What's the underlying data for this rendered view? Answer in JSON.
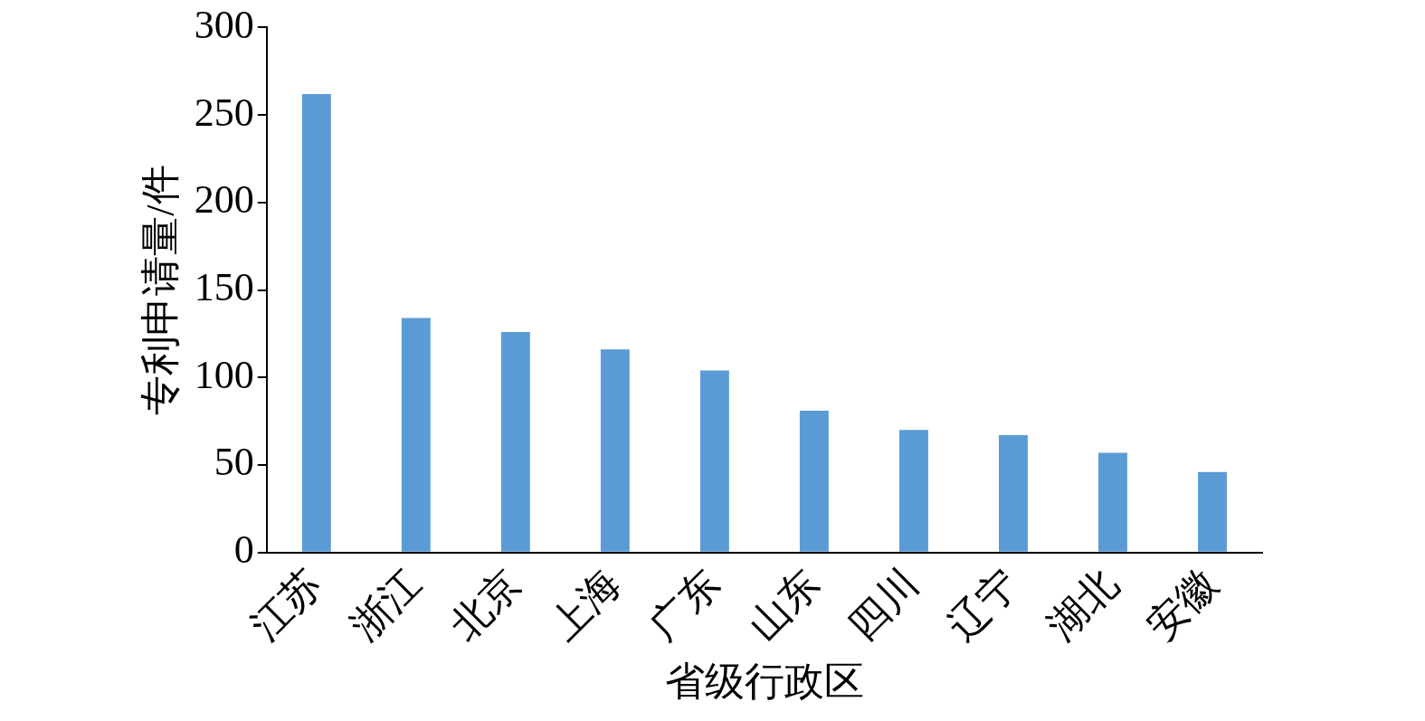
{
  "chart_data": {
    "type": "bar",
    "categories": [
      "江苏",
      "浙江",
      "北京",
      "上海",
      "广东",
      "山东",
      "四川",
      "辽宁",
      "湖北",
      "安徽"
    ],
    "values": [
      262,
      134,
      126,
      116,
      104,
      81,
      70,
      67,
      57,
      46
    ],
    "color": "#5b9bd5",
    "xlabel": "省级行政区",
    "ylabel": "专利申请量/件",
    "ylim": [
      0,
      300
    ],
    "yticks": [
      0,
      50,
      100,
      150,
      200,
      250,
      300
    ],
    "grid": false,
    "legend": false
  }
}
